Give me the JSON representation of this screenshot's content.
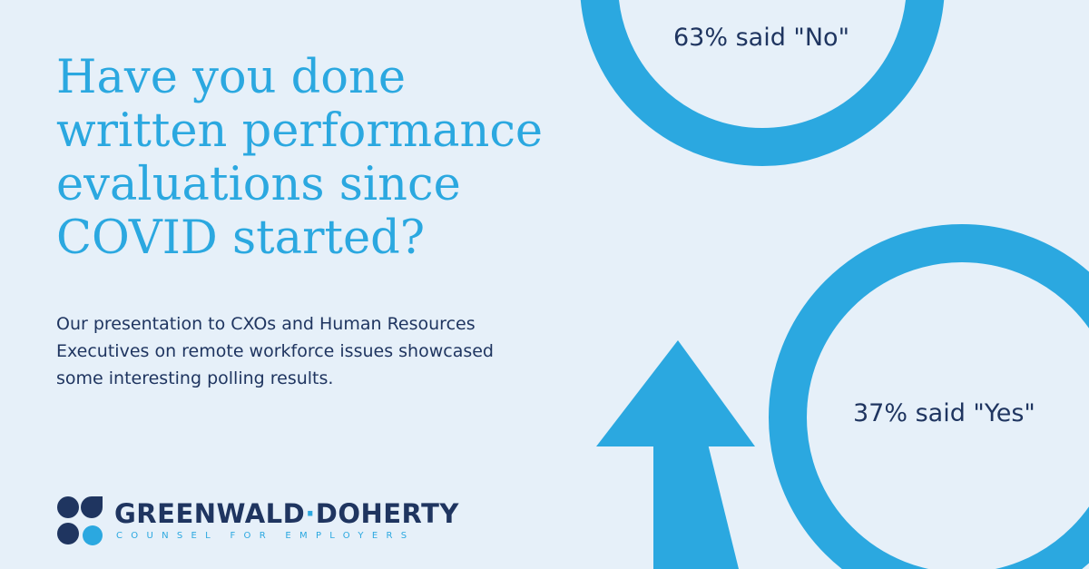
{
  "headline": {
    "lines": [
      "Have you done",
      "written performance",
      "evaluations since",
      "COVID started?"
    ]
  },
  "subtext": {
    "lines": [
      "Our presentation to CXOs and Human Resources",
      "Executives on remote workforce issues showcased",
      "some interesting polling results."
    ]
  },
  "results": {
    "no_label": "63% said \"No\"",
    "yes_label": "37% said \"Yes\""
  },
  "logo": {
    "name_left": "GREENWALD",
    "separator": "·",
    "name_right": "DOHERTY",
    "tagline": "COUNSEL FOR EMPLOYERS"
  },
  "colors": {
    "background": "#e6f0f9",
    "accent": "#2ba8e0",
    "navy": "#1f3560"
  }
}
